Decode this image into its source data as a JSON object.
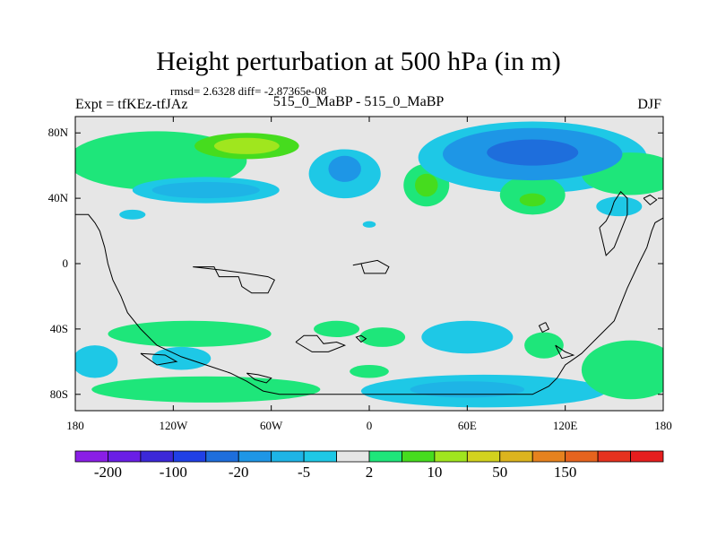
{
  "title": "Height perturbation at 500 hPa (in m)",
  "stats": "rmsd= 2.6328  diff= -2.87365e-08",
  "left_label": "Expt = tfKEz-tfJAz",
  "center_label": "515_0_MaBP - 515_0_MaBP",
  "right_label": "DJF",
  "chart_data": {
    "type": "heatmap",
    "xlim": [
      -180,
      180
    ],
    "ylim": [
      -90,
      90
    ],
    "x_ticks": [
      {
        "value": -180,
        "label": "180"
      },
      {
        "value": -120,
        "label": "120W"
      },
      {
        "value": -60,
        "label": "60W"
      },
      {
        "value": 0,
        "label": "0"
      },
      {
        "value": 60,
        "label": "60E"
      },
      {
        "value": 120,
        "label": "120E"
      },
      {
        "value": 180,
        "label": "180"
      }
    ],
    "y_ticks": [
      {
        "value": 80,
        "label": "80N"
      },
      {
        "value": 40,
        "label": "40N"
      },
      {
        "value": 0,
        "label": "0"
      },
      {
        "value": -40,
        "label": "40S"
      },
      {
        "value": -80,
        "label": "80S"
      }
    ],
    "colorbar": {
      "colors": [
        "#8a1ee6",
        "#6a1ee6",
        "#3c28d8",
        "#2040e6",
        "#1e6edc",
        "#1e96e6",
        "#1eb4e6",
        "#1ec8e6",
        "#e6e6e6",
        "#1ee67a",
        "#46dc1e",
        "#a0e61e",
        "#d2d21e",
        "#dcb41e",
        "#e6821e",
        "#e6641e",
        "#e6321e",
        "#e61e1e"
      ],
      "labels": [
        {
          "after_bin": 1,
          "text": "-200"
        },
        {
          "after_bin": 3,
          "text": "-100"
        },
        {
          "after_bin": 5,
          "text": "-20"
        },
        {
          "after_bin": 7,
          "text": "-5"
        },
        {
          "after_bin": 9,
          "text": "2"
        },
        {
          "after_bin": 11,
          "text": "10"
        },
        {
          "after_bin": 13,
          "text": "50"
        },
        {
          "after_bin": 15,
          "text": "150"
        }
      ]
    },
    "blobs": [
      {
        "lon": -130,
        "lat": 63,
        "rlon": 55,
        "rlat": 18,
        "level": 1,
        "color": "#1ee67a"
      },
      {
        "lon": -75,
        "lat": 72,
        "rlon": 32,
        "rlat": 8,
        "level": 2,
        "color": "#46dc1e"
      },
      {
        "lon": -75,
        "lat": 72,
        "rlon": 20,
        "rlat": 5,
        "level": 3,
        "color": "#a0e61e"
      },
      {
        "lon": -100,
        "lat": 45,
        "rlon": 45,
        "rlat": 8,
        "level": 1,
        "color": "#1ec8e6"
      },
      {
        "lon": -100,
        "lat": 45,
        "rlon": 33,
        "rlat": 5,
        "level": 2,
        "color": "#1eb4e6"
      },
      {
        "lon": -15,
        "lat": 55,
        "rlon": 22,
        "rlat": 15,
        "level": 1,
        "color": "#1ec8e6"
      },
      {
        "lon": -15,
        "lat": 58,
        "rlon": 10,
        "rlat": 8,
        "level": 2,
        "color": "#1e96e6"
      },
      {
        "lon": 35,
        "lat": 48,
        "rlon": 14,
        "rlat": 13,
        "level": 1,
        "color": "#1ee67a"
      },
      {
        "lon": 35,
        "lat": 48,
        "rlon": 7,
        "rlat": 7,
        "level": 2,
        "color": "#46dc1e"
      },
      {
        "lon": 100,
        "lat": 65,
        "rlon": 70,
        "rlat": 22,
        "level": 1,
        "color": "#1ec8e6"
      },
      {
        "lon": 100,
        "lat": 67,
        "rlon": 55,
        "rlat": 16,
        "level": 2,
        "color": "#1e96e6"
      },
      {
        "lon": 100,
        "lat": 68,
        "rlon": 28,
        "rlat": 8,
        "level": 3,
        "color": "#1e6edc"
      },
      {
        "lon": 100,
        "lat": 42,
        "rlon": 20,
        "rlat": 12,
        "level": 1,
        "color": "#1ee67a"
      },
      {
        "lon": 100,
        "lat": 39,
        "rlon": 8,
        "rlat": 4,
        "level": 2,
        "color": "#46dc1e"
      },
      {
        "lon": 160,
        "lat": 55,
        "rlon": 30,
        "rlat": 13,
        "level": 1,
        "color": "#1ee67a"
      },
      {
        "lon": 153,
        "lat": 35,
        "rlon": 14,
        "rlat": 6,
        "level": 1,
        "color": "#1ec8e6"
      },
      {
        "lon": -110,
        "lat": -43,
        "rlon": 50,
        "rlat": 8,
        "level": 1,
        "color": "#1ee67a"
      },
      {
        "lon": -168,
        "lat": -60,
        "rlon": 14,
        "rlat": 10,
        "level": 1,
        "color": "#1ec8e6"
      },
      {
        "lon": -115,
        "lat": -58,
        "rlon": 18,
        "rlat": 7,
        "level": 1,
        "color": "#1ec8e6"
      },
      {
        "lon": -100,
        "lat": -77,
        "rlon": 70,
        "rlat": 8,
        "level": 1,
        "color": "#1ee67a"
      },
      {
        "lon": 70,
        "lat": -78,
        "rlon": 75,
        "rlat": 10,
        "level": 1,
        "color": "#1ec8e6"
      },
      {
        "lon": 60,
        "lat": -77,
        "rlon": 35,
        "rlat": 5,
        "level": 2,
        "color": "#1eb4e6"
      },
      {
        "lon": 60,
        "lat": -45,
        "rlon": 28,
        "rlat": 10,
        "level": 1,
        "color": "#1ec8e6"
      },
      {
        "lon": 160,
        "lat": -65,
        "rlon": 30,
        "rlat": 18,
        "level": 1,
        "color": "#1ee67a"
      },
      {
        "lon": 107,
        "lat": -50,
        "rlon": 12,
        "rlat": 8,
        "level": 1,
        "color": "#1ee67a"
      },
      {
        "lon": 8,
        "lat": -45,
        "rlon": 14,
        "rlat": 6,
        "level": 1,
        "color": "#1ee67a"
      },
      {
        "lon": -20,
        "lat": -40,
        "rlon": 14,
        "rlat": 5,
        "level": 1,
        "color": "#1ee67a"
      },
      {
        "lon": 0,
        "lat": -66,
        "rlon": 12,
        "rlat": 4,
        "level": 1,
        "color": "#1ee67a"
      },
      {
        "lon": -145,
        "lat": 30,
        "rlon": 8,
        "rlat": 3,
        "level": 1,
        "color": "#1ec8e6"
      },
      {
        "lon": 0,
        "lat": 24,
        "rlon": 4,
        "rlat": 2,
        "level": 1,
        "color": "#1ec8e6"
      }
    ],
    "coastlines": [
      [
        [
          -180,
          30
        ],
        [
          -172,
          30
        ],
        [
          -168,
          25
        ],
        [
          -165,
          20
        ],
        [
          -162,
          10
        ],
        [
          -160,
          0
        ],
        [
          -157,
          -10
        ],
        [
          -152,
          -20
        ],
        [
          -148,
          -30
        ],
        [
          -140,
          -40
        ],
        [
          -130,
          -50
        ],
        [
          -115,
          -57
        ],
        [
          -100,
          -62
        ],
        [
          -85,
          -67
        ],
        [
          -75,
          -72
        ],
        [
          -70,
          -75
        ],
        [
          -65,
          -78
        ],
        [
          -55,
          -80
        ],
        [
          -40,
          -80
        ],
        [
          -20,
          -80
        ],
        [
          0,
          -80
        ],
        [
          20,
          -80
        ],
        [
          40,
          -80
        ],
        [
          60,
          -80
        ],
        [
          80,
          -80
        ],
        [
          100,
          -80
        ],
        [
          110,
          -75
        ],
        [
          115,
          -70
        ],
        [
          120,
          -62
        ],
        [
          130,
          -55
        ],
        [
          140,
          -45
        ],
        [
          150,
          -35
        ],
        [
          158,
          -15
        ],
        [
          165,
          0
        ],
        [
          170,
          10
        ],
        [
          173,
          20
        ],
        [
          175,
          25
        ],
        [
          180,
          28
        ]
      ],
      [
        [
          -108,
          -2
        ],
        [
          -95,
          -2
        ],
        [
          -92,
          -8
        ],
        [
          -80,
          -8
        ],
        [
          -78,
          -14
        ],
        [
          -72,
          -18
        ],
        [
          -62,
          -18
        ],
        [
          -58,
          -10
        ],
        [
          -62,
          -8
        ],
        [
          -75,
          -6
        ],
        [
          -90,
          -4
        ],
        [
          -108,
          -2
        ]
      ],
      [
        [
          -10,
          -1
        ],
        [
          -5,
          0
        ],
        [
          -3,
          -6
        ],
        [
          10,
          -6
        ],
        [
          12,
          -2
        ],
        [
          5,
          2
        ],
        [
          -10,
          -1
        ]
      ],
      [
        [
          -45,
          -48
        ],
        [
          -40,
          -44
        ],
        [
          -32,
          -44
        ],
        [
          -28,
          -49
        ],
        [
          -20,
          -48
        ],
        [
          -15,
          -50
        ],
        [
          -25,
          -54
        ],
        [
          -35,
          -54
        ],
        [
          -45,
          -48
        ]
      ],
      [
        [
          -5,
          -44
        ],
        [
          -2,
          -46
        ],
        [
          -5,
          -48
        ],
        [
          -8,
          -45
        ],
        [
          -5,
          -44
        ]
      ],
      [
        [
          -140,
          -55
        ],
        [
          -125,
          -56
        ],
        [
          -118,
          -60
        ],
        [
          -130,
          -62
        ],
        [
          -140,
          -55
        ]
      ],
      [
        [
          -75,
          -67
        ],
        [
          -70,
          -71
        ],
        [
          -63,
          -73
        ],
        [
          -60,
          -70
        ],
        [
          -68,
          -68
        ],
        [
          -75,
          -67
        ]
      ],
      [
        [
          108,
          -36
        ],
        [
          110,
          -40
        ],
        [
          106,
          -42
        ],
        [
          104,
          -38
        ],
        [
          108,
          -36
        ]
      ],
      [
        [
          114,
          -50
        ],
        [
          120,
          -54
        ],
        [
          125,
          -56
        ],
        [
          118,
          -58
        ],
        [
          114,
          -50
        ]
      ],
      [
        [
          141,
          22
        ],
        [
          145,
          26
        ],
        [
          148,
          32
        ],
        [
          150,
          38
        ],
        [
          154,
          44
        ],
        [
          158,
          40
        ],
        [
          158,
          30
        ],
        [
          154,
          20
        ],
        [
          150,
          10
        ],
        [
          145,
          5
        ],
        [
          141,
          22
        ]
      ],
      [
        [
          168,
          40
        ],
        [
          172,
          42
        ],
        [
          176,
          39
        ],
        [
          172,
          36
        ],
        [
          168,
          40
        ]
      ]
    ]
  }
}
